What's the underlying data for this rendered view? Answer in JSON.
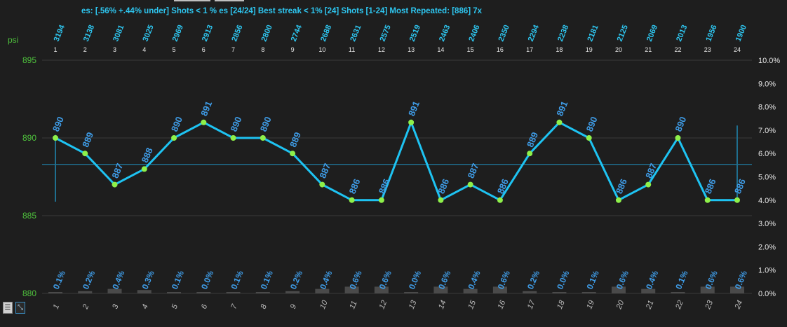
{
  "header": {
    "stats_text": "es: [.56% +.44% under] Shots < 1 % es [24/24] Best streak < 1% [24] Shots [1-24] Most Repeated: [886] 7x",
    "right_fragment": "",
    "mid_fragment": "",
    "right_blue_fragment": ""
  },
  "chart_data": {
    "type": "line",
    "unit_label": "psi",
    "shots": [
      1,
      2,
      3,
      4,
      5,
      6,
      7,
      8,
      9,
      10,
      11,
      12,
      13,
      14,
      15,
      16,
      17,
      18,
      19,
      20,
      21,
      22,
      23,
      24
    ],
    "shot_counts": [
      3194,
      3138,
      3081,
      3025,
      2969,
      2913,
      2856,
      2800,
      2744,
      2688,
      2631,
      2575,
      2519,
      2463,
      2406,
      2350,
      2294,
      2238,
      2181,
      2125,
      2069,
      2013,
      1956,
      1900
    ],
    "series": [
      {
        "values": [
          890,
          889,
          887,
          888,
          890,
          891,
          890,
          890,
          889,
          887,
          886,
          886,
          891,
          886,
          887,
          886,
          889,
          891,
          890,
          886,
          887,
          890,
          886,
          886
        ],
        "color": "#1ec3f2"
      }
    ],
    "deviation_labels": [
      "0.1%",
      "0.2%",
      "0.4%",
      "0.3%",
      "0.1%",
      "0.0%",
      "0.1%",
      "0.1%",
      "0.2%",
      "0.4%",
      "0.6%",
      "0.6%",
      "0.0%",
      "0.6%",
      "0.4%",
      "0.6%",
      "0.2%",
      "0.0%",
      "0.1%",
      "0.6%",
      "0.4%",
      "0.1%",
      "0.6%",
      "0.6%"
    ],
    "deviation_values": [
      0.1,
      0.2,
      0.4,
      0.3,
      0.1,
      0.0,
      0.1,
      0.1,
      0.2,
      0.4,
      0.6,
      0.6,
      0.0,
      0.6,
      0.4,
      0.6,
      0.2,
      0.0,
      0.1,
      0.6,
      0.4,
      0.1,
      0.6,
      0.6
    ],
    "average_line": 888.3,
    "ylim": [
      880,
      895
    ],
    "y_ticks": [
      880,
      885,
      890,
      895
    ],
    "y2_ticks": [
      "0.0%",
      "1.0%",
      "2.0%",
      "3.0%",
      "4.0%",
      "5.0%",
      "6.0%",
      "7.0%",
      "8.0%",
      "9.0%",
      "10.0%"
    ],
    "y2lim": [
      0,
      10
    ],
    "range_bar_left": [
      885.9,
      890.2
    ],
    "range_bar_right": [
      886.0,
      890.8
    ],
    "grid": true,
    "colors": {
      "line": "#1ec3f2",
      "point": "#8ef04a",
      "value_label": "#3f9de8",
      "top_label": "#2ec6f0",
      "y_tick": "#4ec03c",
      "grid": "#3a3a3a",
      "avg_line": "#1f6f8f",
      "bar": "#4a4a4a"
    }
  },
  "controls": {
    "menu_icon": "menu-icon",
    "expand_icon": "expand-icon"
  }
}
